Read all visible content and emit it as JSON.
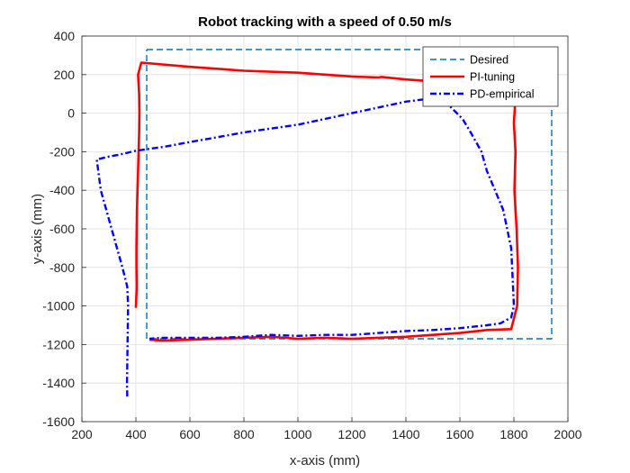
{
  "chart_data": {
    "type": "line",
    "title": "Robot tracking with a speed of 0.50 m/s",
    "xlabel": "x-axis (mm)",
    "ylabel": "y-axis (mm)",
    "xlim": [
      200,
      2000
    ],
    "ylim": [
      -1600,
      400
    ],
    "xticks": [
      200,
      400,
      600,
      800,
      1000,
      1200,
      1400,
      1600,
      1800,
      2000
    ],
    "yticks": [
      400,
      200,
      0,
      -200,
      -400,
      -600,
      -800,
      -1000,
      -1200,
      -1400,
      -1600
    ],
    "grid": true,
    "legend_position": "top-right",
    "series": [
      {
        "name": "Desired",
        "color": "#0072BD",
        "style": "dashed",
        "x": [
          440,
          1940,
          1940,
          440,
          440
        ],
        "y": [
          330,
          330,
          -1170,
          -1170,
          330
        ]
      },
      {
        "name": "PI-tuning",
        "color": "#FF0000",
        "style": "solid",
        "x": [
          400,
          403,
          402,
          402,
          403,
          404,
          406,
          408,
          410,
          412,
          413,
          412,
          408,
          420,
          600,
          800,
          1000,
          1100,
          1200,
          1300,
          1310,
          1400,
          1500,
          1580,
          1585,
          1580,
          1582,
          1585,
          1590,
          1600,
          1700,
          1770,
          1780,
          1800,
          1808,
          1805,
          1800,
          1806,
          1804,
          1802,
          1810,
          1815,
          1812,
          1790,
          1700,
          1600,
          1500,
          1400,
          1300,
          1200,
          1100,
          1000,
          900,
          800,
          700,
          600,
          500,
          450
        ],
        "y": [
          -1010,
          -900,
          -800,
          -700,
          -600,
          -500,
          -400,
          -300,
          -200,
          -100,
          0,
          100,
          200,
          262,
          240,
          220,
          210,
          200,
          190,
          185,
          188,
          175,
          165,
          165,
          170,
          180,
          190,
          200,
          210,
          220,
          230,
          240,
          245,
          250,
          160,
          60,
          -50,
          -200,
          -300,
          -400,
          -600,
          -800,
          -1000,
          -1120,
          -1125,
          -1140,
          -1150,
          -1160,
          -1165,
          -1170,
          -1165,
          -1170,
          -1160,
          -1165,
          -1170,
          -1175,
          -1180,
          -1175
        ]
      },
      {
        "name": "PD-empirical",
        "color": "#0000FF",
        "style": "dashdot",
        "x": [
          368,
          367,
          368,
          369,
          370,
          371,
          368,
          350,
          330,
          310,
          290,
          270,
          255,
          300,
          340,
          400,
          500,
          600,
          700,
          800,
          900,
          1000,
          1100,
          1200,
          1300,
          1400,
          1460,
          1480,
          1520,
          1560,
          1610,
          1640,
          1680,
          1700,
          1730,
          1760,
          1790,
          1800,
          1790,
          1750,
          1700,
          1600,
          1500,
          1400,
          1300,
          1200,
          1100,
          1000,
          900,
          800,
          700,
          600,
          500,
          450
        ],
        "y": [
          -1470,
          -1400,
          -1300,
          -1200,
          -1100,
          -1000,
          -900,
          -800,
          -700,
          -600,
          -500,
          -400,
          -240,
          -225,
          -215,
          -195,
          -175,
          -150,
          -125,
          -100,
          -80,
          -60,
          -30,
          0,
          30,
          60,
          70,
          75,
          80,
          40,
          -30,
          -100,
          -200,
          -300,
          -400,
          -500,
          -700,
          -1000,
          -1060,
          -1090,
          -1100,
          -1115,
          -1125,
          -1130,
          -1140,
          -1150,
          -1150,
          -1155,
          -1150,
          -1160,
          -1165,
          -1165,
          -1165,
          -1170
        ]
      }
    ]
  }
}
